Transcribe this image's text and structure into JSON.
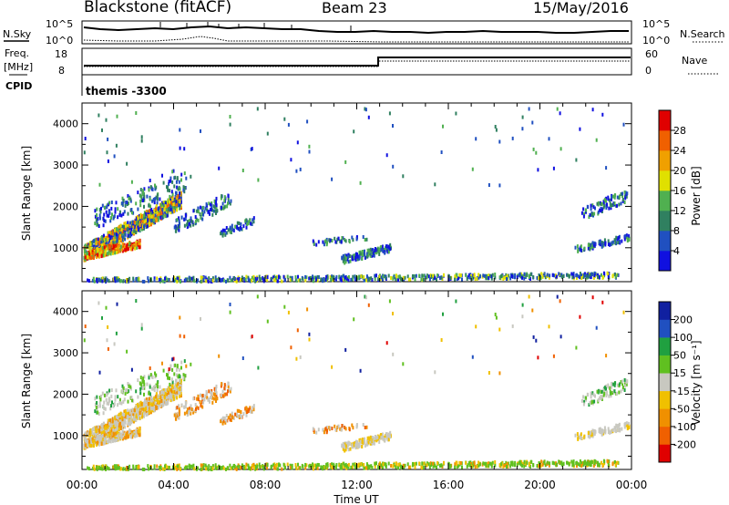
{
  "header": {
    "station": "Blackstone (fitACF)",
    "beam": "Beam 23",
    "date": "15/May/2016"
  },
  "summary": {
    "nsky_label": "N.Sky",
    "nsearch_label": "N.Search",
    "left_ticks": [
      "10^5",
      "10^0"
    ],
    "right_ticks": [
      "10^5",
      "10^0"
    ],
    "freq_label_1": "Freq.",
    "freq_label_2": "[MHz]",
    "freq_ticks": [
      "18",
      "8"
    ],
    "nave_label": "Nave",
    "nave_ticks": [
      "60",
      "0"
    ],
    "cpid_label": "CPID",
    "cpid_value": "themis -3300"
  },
  "chart_data": [
    {
      "type": "heatmap",
      "title": "",
      "ylabel": "Slant Range [km]",
      "xlabel": "",
      "ylim": [
        180,
        4500
      ],
      "yticks": [
        "1000",
        "2000",
        "3000",
        "4000"
      ],
      "colorbar_label": "Power [dB]",
      "colorbar_ticks": [
        "4",
        "8",
        "12",
        "16",
        "20",
        "24",
        "28"
      ],
      "colors": [
        "#1010e0",
        "#2050c0",
        "#308060",
        "#50b050",
        "#e0e000",
        "#f0a000",
        "#f06000",
        "#e00000"
      ]
    },
    {
      "type": "heatmap",
      "title": "",
      "ylabel": "Slant Range [km]",
      "xlabel": "Time UT",
      "ylim": [
        180,
        4500
      ],
      "yticks": [
        "1000",
        "2000",
        "3000",
        "4000"
      ],
      "xticks": [
        "00:00",
        "04:00",
        "08:00",
        "12:00",
        "16:00",
        "20:00",
        "00:00"
      ],
      "colorbar_label": "Velocity [m s⁻¹]",
      "colorbar_ticks": [
        "-200",
        "-100",
        "-50",
        "-15",
        "15",
        "50",
        "100",
        "200"
      ],
      "colors": [
        "#e00000",
        "#f06000",
        "#f09000",
        "#f0c000",
        "#c8c8c0",
        "#60c020",
        "#20a040",
        "#2050c0",
        "#1020a0"
      ]
    }
  ]
}
